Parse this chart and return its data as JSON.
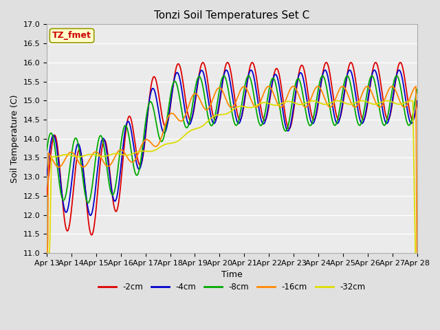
{
  "title": "Tonzi Soil Temperatures Set C",
  "xlabel": "Time",
  "ylabel": "Soil Temperature (C)",
  "ylim": [
    11.0,
    17.0
  ],
  "yticks": [
    11.0,
    11.5,
    12.0,
    12.5,
    13.0,
    13.5,
    14.0,
    14.5,
    15.0,
    15.5,
    16.0,
    16.5,
    17.0
  ],
  "annotation_text": "TZ_fmet",
  "annotation_box_color": "#ffffcc",
  "annotation_text_color": "#cc0000",
  "series_colors": [
    "#dd0000",
    "#0000cc",
    "#00aa00",
    "#ff8800",
    "#dddd00"
  ],
  "xtick_labels": [
    "Apr 13",
    "Apr 14",
    "Apr 15",
    "Apr 16",
    "Apr 17",
    "Apr 18",
    "Apr 19",
    "Apr 20",
    "Apr 21",
    "Apr 22",
    "Apr 23",
    "Apr 24",
    "Apr 25",
    "Apr 26",
    "Apr 27",
    "Apr 28"
  ],
  "background_color": "#e0e0e0",
  "plot_bg_color": "#ebebeb",
  "grid_color": "#ffffff",
  "legend_entries": [
    "-2cm",
    "-4cm",
    "-8cm",
    "-16cm",
    "-32cm"
  ],
  "n_days": 15,
  "pts_per_day": 48
}
